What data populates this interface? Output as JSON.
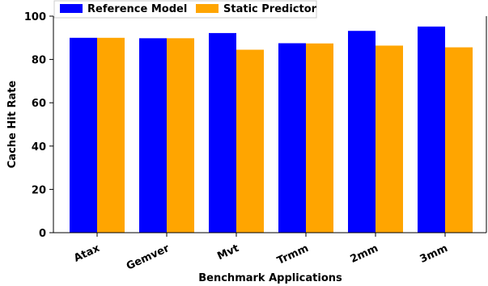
{
  "chart_data": {
    "type": "bar",
    "title": "",
    "xlabel": "Benchmark Applications",
    "ylabel": "Cache Hit Rate",
    "categories": [
      "Atax",
      "Gemver",
      "Mvt",
      "Trmm",
      "2mm",
      "3mm"
    ],
    "ylim": [
      0,
      100
    ],
    "yticks": [
      0,
      20,
      40,
      60,
      80,
      100
    ],
    "grid": false,
    "legend_position": "top-left",
    "series": [
      {
        "name": "Reference Model",
        "color": "#0000ff",
        "values": [
          90.0,
          89.8,
          92.2,
          87.5,
          93.2,
          95.2
        ]
      },
      {
        "name": "Static Predictor",
        "color": "#ffa500",
        "values": [
          90.0,
          89.8,
          84.5,
          87.4,
          86.4,
          85.6
        ]
      }
    ]
  }
}
